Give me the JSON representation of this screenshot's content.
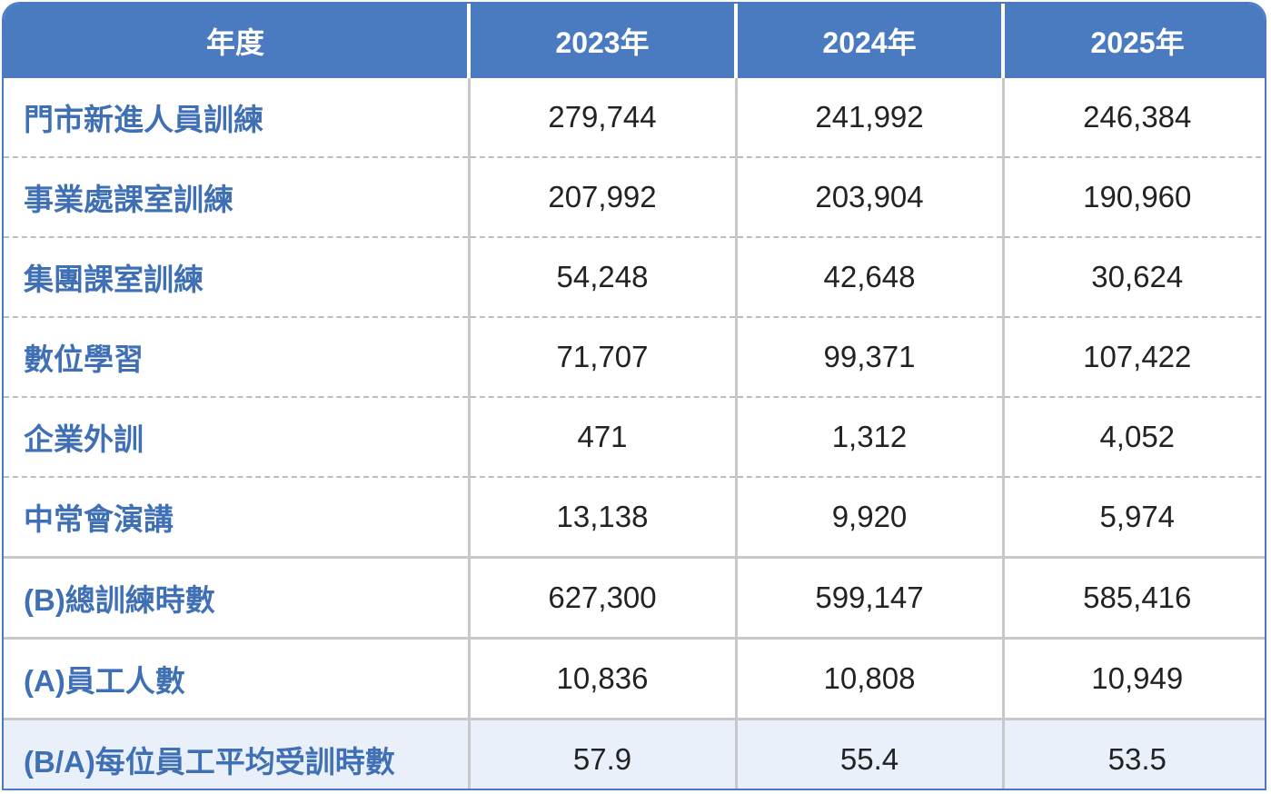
{
  "table": {
    "headers": [
      "年度",
      "2023年",
      "2024年",
      "2025年"
    ],
    "rows": [
      {
        "label": "門市新進人員訓練",
        "values": [
          "279,744",
          "241,992",
          "246,384"
        ]
      },
      {
        "label": "事業處課室訓練",
        "values": [
          "207,992",
          "203,904",
          "190,960"
        ]
      },
      {
        "label": "集團課室訓練",
        "values": [
          "54,248",
          "42,648",
          "30,624"
        ]
      },
      {
        "label": "數位學習",
        "values": [
          "71,707",
          "99,371",
          "107,422"
        ]
      },
      {
        "label": "企業外訓",
        "values": [
          "471",
          "1,312",
          "4,052"
        ]
      },
      {
        "label": "中常會演講",
        "values": [
          "13,138",
          "9,920",
          "5,974"
        ]
      },
      {
        "label": "(B)總訓練時數",
        "values": [
          "627,300",
          "599,147",
          "585,416"
        ]
      },
      {
        "label": "(A)員工人數",
        "values": [
          "10,836",
          "10,808",
          "10,949"
        ]
      },
      {
        "label": "(B/A)每位員工平均受訓時數",
        "values": [
          "57.9",
          "55.4",
          "53.5"
        ]
      }
    ]
  },
  "colors": {
    "header_bg": "#4a7abf",
    "label_text": "#3f6fb4",
    "highlight_row_bg": "#e9f0f9"
  }
}
